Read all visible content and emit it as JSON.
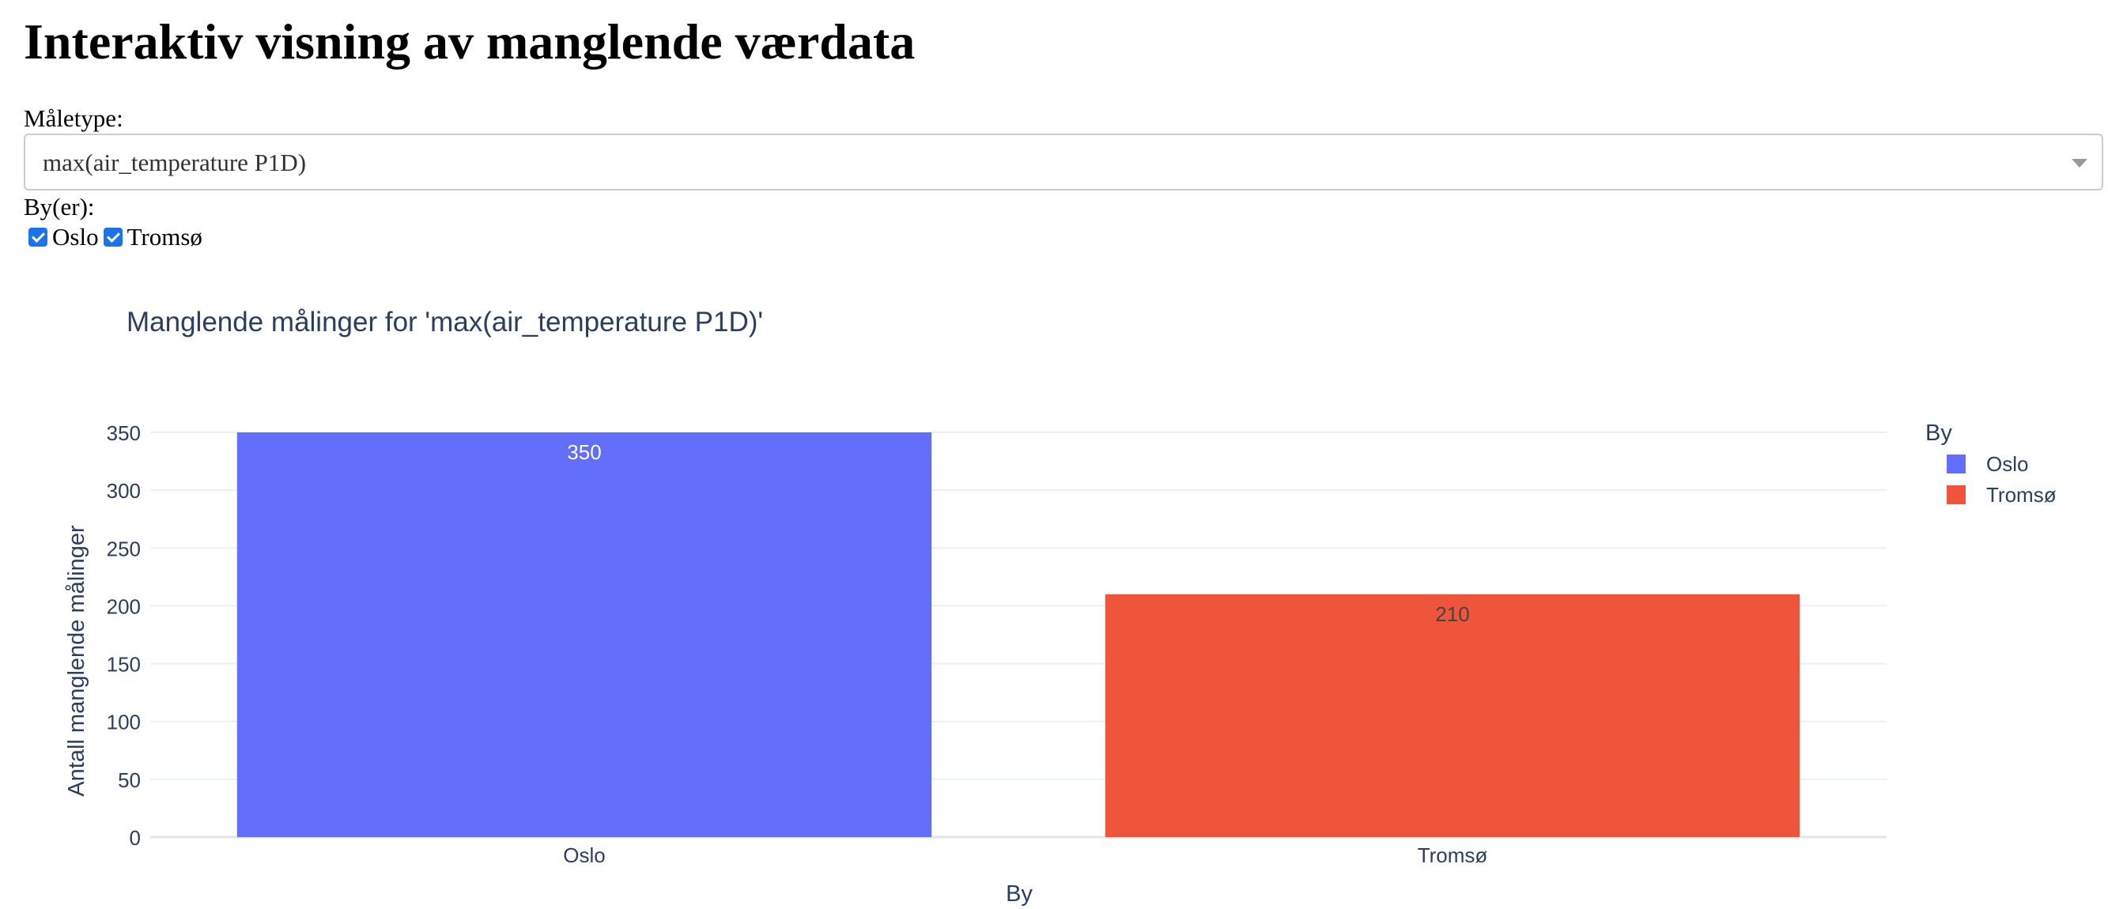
{
  "page": {
    "title": "Interaktiv visning av manglende værdata"
  },
  "controls": {
    "measure_label": "Måletype:",
    "measure_selected": "max(air_temperature P1D)",
    "city_label": "By(er):",
    "cities": [
      {
        "label": "Oslo",
        "checked": true
      },
      {
        "label": "Tromsø",
        "checked": true
      }
    ]
  },
  "chart_data": {
    "type": "bar",
    "title": "Manglende målinger for 'max(air_temperature P1D)'",
    "xlabel": "By",
    "ylabel": "Antall manglende målinger",
    "categories": [
      "Oslo",
      "Tromsø"
    ],
    "values": [
      350,
      210
    ],
    "data_labels": [
      "350",
      "210"
    ],
    "colors": [
      "#636efa",
      "#ef553b"
    ],
    "ylim": [
      0,
      350
    ],
    "yticks": [
      0,
      50,
      100,
      150,
      200,
      250,
      300,
      350
    ],
    "grid": true,
    "legend_title": "By",
    "legend": [
      {
        "name": "Oslo",
        "color": "#636efa"
      },
      {
        "name": "Tromsø",
        "color": "#ef553b"
      }
    ],
    "legend_position": "top-right"
  }
}
